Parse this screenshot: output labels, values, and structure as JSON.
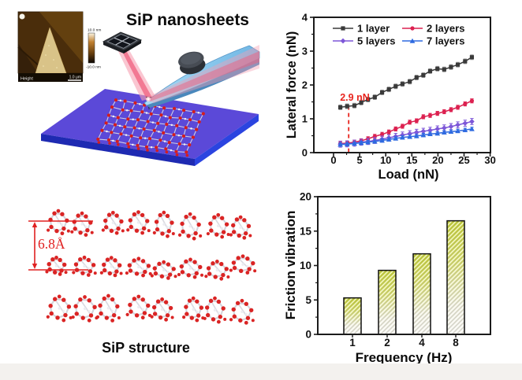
{
  "page": {
    "background": "#ffffff",
    "footer_color": "#f3f1ee"
  },
  "panel_nanosheets": {
    "title": "SiP nanosheets",
    "afm_inset": {
      "label": "Height",
      "scale_label": "1.0 μm",
      "colorbar_top": "10.0 nm",
      "colorbar_bottom": "-10.0 nm"
    },
    "colors": {
      "substrate_top": "#5b49d8",
      "substrate_left": "#1e2ab2",
      "substrate_right": "#2b44e0",
      "atom_red": "#d51d1d",
      "bond": "#dcdce6",
      "cantilever": "#8ecbee",
      "laser": "#ef5f7e",
      "detector": "#3a3f46"
    }
  },
  "panel_structure": {
    "caption": "SiP structure",
    "annotation_text": "6.8Å",
    "annotation_color": "#e02020",
    "colors": {
      "atom_red": "#da2424",
      "bond": "#d2d2da"
    }
  },
  "chart_data": [
    {
      "id": "lateral-force-vs-load",
      "type": "line",
      "title": "",
      "xlabel": "Load (nN)",
      "ylabel": "Lateral force (nN)",
      "xlim": [
        -3.8,
        30
      ],
      "ylim": [
        0,
        4
      ],
      "xticks": [
        0,
        5,
        10,
        15,
        20,
        25,
        30
      ],
      "yticks": [
        0,
        1,
        2,
        3,
        4
      ],
      "grid": false,
      "legend_position": "top-inside",
      "legend_rows": [
        [
          "1 layer",
          "2 layers"
        ],
        [
          "5 layers",
          "7 layers"
        ]
      ],
      "x": [
        1.3,
        2.6,
        4.0,
        5.3,
        6.6,
        7.9,
        9.3,
        10.6,
        11.9,
        13.2,
        14.6,
        15.9,
        17.2,
        18.5,
        19.9,
        21.2,
        22.5,
        23.8,
        25.2,
        26.5
      ],
      "series": [
        {
          "name": "1 layer",
          "marker": "square",
          "color": "#3a3a3a",
          "error": 0.07,
          "error_color": "#9a9a9a",
          "values": [
            1.34,
            1.37,
            1.39,
            1.48,
            1.57,
            1.64,
            1.78,
            1.87,
            1.96,
            2.03,
            2.1,
            2.22,
            2.29,
            2.41,
            2.48,
            2.46,
            2.53,
            2.6,
            2.7,
            2.82
          ]
        },
        {
          "name": "2 layers",
          "marker": "circle",
          "color": "#dc2150",
          "error": 0.06,
          "error_color": "#dc2150",
          "values": [
            0.27,
            0.28,
            0.31,
            0.35,
            0.41,
            0.48,
            0.54,
            0.61,
            0.7,
            0.78,
            0.9,
            0.94,
            1.06,
            1.1,
            1.16,
            1.21,
            1.27,
            1.34,
            1.44,
            1.53
          ]
        },
        {
          "name": "5 layers",
          "marker": "diamond",
          "color": "#7d57d8",
          "error": 0.09,
          "error_color": "#7d57d8",
          "values": [
            0.25,
            0.26,
            0.28,
            0.31,
            0.33,
            0.36,
            0.4,
            0.44,
            0.48,
            0.52,
            0.56,
            0.6,
            0.63,
            0.66,
            0.7,
            0.73,
            0.77,
            0.82,
            0.87,
            0.92
          ]
        },
        {
          "name": "7 layers",
          "marker": "triangle",
          "color": "#2e6ae0",
          "error": 0.05,
          "error_color": "#2e6ae0",
          "values": [
            0.24,
            0.25,
            0.27,
            0.29,
            0.31,
            0.33,
            0.36,
            0.39,
            0.42,
            0.45,
            0.47,
            0.49,
            0.52,
            0.55,
            0.57,
            0.6,
            0.62,
            0.64,
            0.67,
            0.7
          ]
        }
      ],
      "annotation": {
        "text": "2.9 nN",
        "x": 2.9,
        "line_top_value": 1.38,
        "color": "#e8251f"
      }
    },
    {
      "id": "friction-vibration-vs-frequency",
      "type": "bar",
      "title": "",
      "xlabel": "Frequency (Hz)",
      "ylabel": "Friction vibration",
      "categories": [
        "1",
        "2",
        "4",
        "8"
      ],
      "values": [
        5.3,
        9.3,
        11.7,
        16.5
      ],
      "ylim": [
        0,
        20
      ],
      "yticks": [
        0,
        5,
        10,
        15,
        20
      ],
      "grid": false,
      "bar_gradient_top": "#c9d52f",
      "bar_gradient_bottom": "#f6f5ef",
      "hatch": "diagonal",
      "bar_outline": "#101010"
    }
  ]
}
